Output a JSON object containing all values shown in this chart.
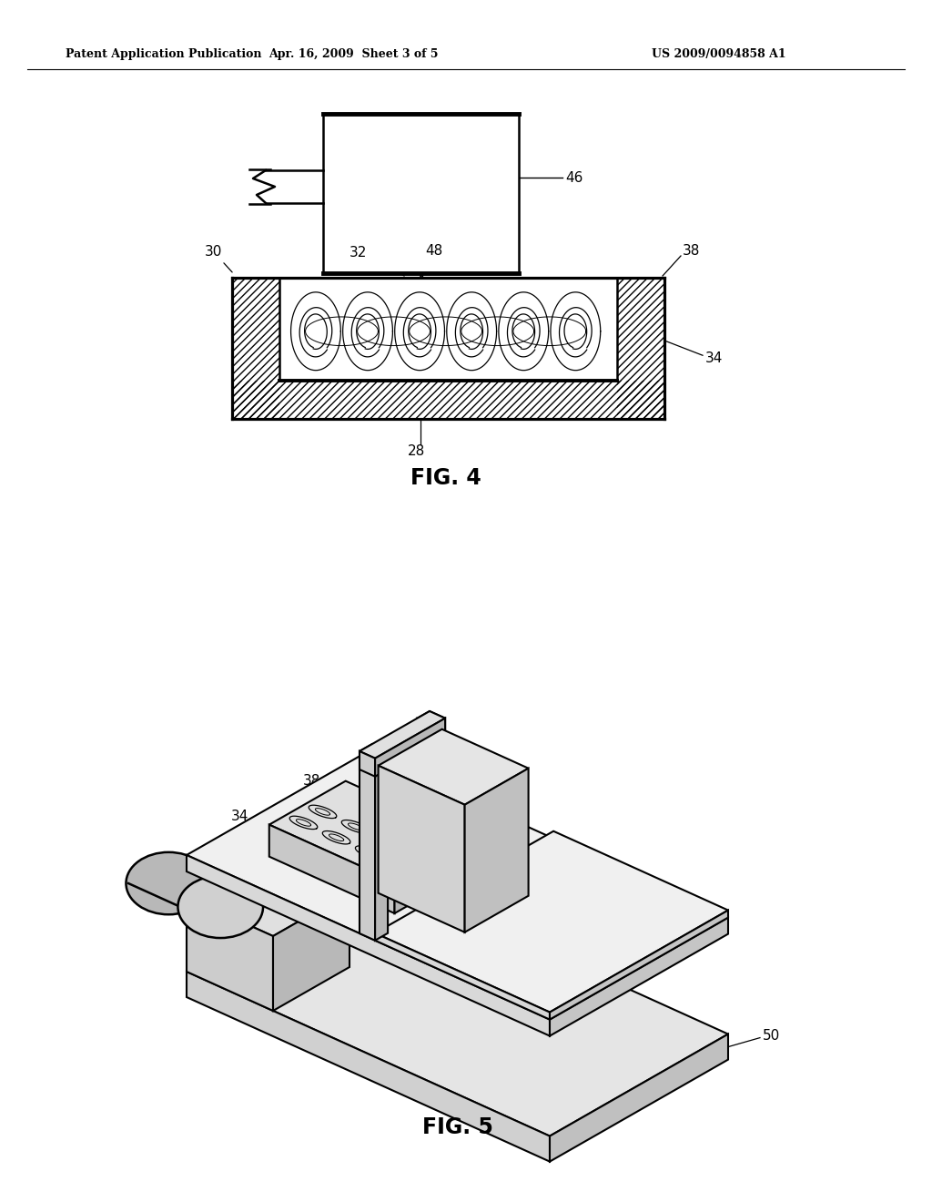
{
  "bg_color": "#ffffff",
  "header_left": "Patent Application Publication",
  "header_center": "Apr. 16, 2009  Sheet 3 of 5",
  "header_right": "US 2009/0094858 A1",
  "fig4_label": "FIG. 4",
  "fig5_label": "FIG. 5",
  "label_color": "#000000"
}
